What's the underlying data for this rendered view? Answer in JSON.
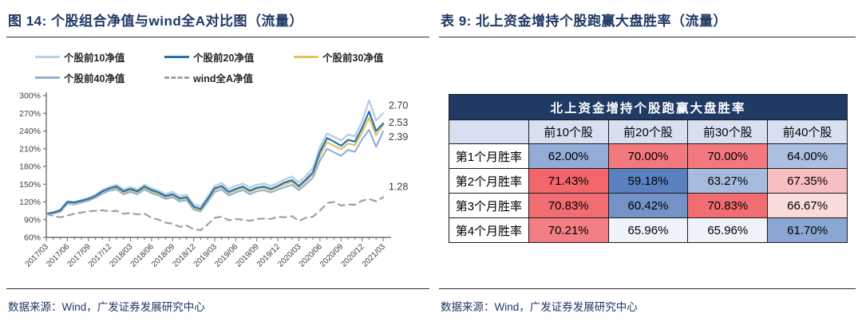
{
  "left_panel": {
    "title": "图 14:  个股组合净值与wind全A对比图（流量）",
    "source": "数据来源：Wind，广发证券发展研究中心"
  },
  "right_panel": {
    "title": "表 9:  北上资金增持个股跑赢大盘胜率（流量）",
    "source": "数据来源：Wind，广发证券发展研究中心"
  },
  "chart_data": {
    "type": "line",
    "title": "个股组合净值与wind全A对比图（流量）",
    "x_resolution": "monthly",
    "x_tick_labels": [
      "2017/03",
      "2017/06",
      "2017/09",
      "2017/12",
      "2018/03",
      "2018/06",
      "2018/09",
      "2018/12",
      "2019/03",
      "2019/06",
      "2019/09",
      "2019/12",
      "2020/03",
      "2020/06",
      "2020/09",
      "2020/12",
      "2021/03"
    ],
    "y_tick_labels": [
      "60%",
      "90%",
      "120%",
      "150%",
      "180%",
      "210%",
      "240%",
      "270%",
      "300%"
    ],
    "ylim_percent": [
      60,
      300
    ],
    "grid": false,
    "legend_position": "top",
    "axis_color": "#6e6e6e",
    "tick_label_color": "#404040",
    "annotation_color": "#3a3a3a",
    "series": [
      {
        "name": "个股前10净值",
        "color": "#B9CDE6",
        "dash": false,
        "end_label": "2.70",
        "values": [
          1.0,
          1.02,
          1.07,
          1.21,
          1.2,
          1.23,
          1.27,
          1.32,
          1.4,
          1.45,
          1.49,
          1.41,
          1.45,
          1.41,
          1.49,
          1.43,
          1.39,
          1.33,
          1.37,
          1.3,
          1.32,
          1.16,
          1.12,
          1.29,
          1.47,
          1.52,
          1.42,
          1.47,
          1.51,
          1.44,
          1.49,
          1.51,
          1.47,
          1.52,
          1.58,
          1.63,
          1.53,
          1.64,
          1.77,
          2.13,
          2.36,
          2.3,
          2.24,
          2.34,
          2.31,
          2.56,
          2.92,
          2.58,
          2.7
        ]
      },
      {
        "name": "个股前20净值",
        "color": "#2572B2",
        "dash": false,
        "end_label": "2.53",
        "values": [
          1.0,
          1.02,
          1.06,
          1.2,
          1.19,
          1.22,
          1.25,
          1.3,
          1.38,
          1.43,
          1.46,
          1.38,
          1.42,
          1.38,
          1.46,
          1.4,
          1.36,
          1.3,
          1.33,
          1.26,
          1.28,
          1.12,
          1.08,
          1.25,
          1.43,
          1.47,
          1.37,
          1.42,
          1.46,
          1.39,
          1.44,
          1.46,
          1.42,
          1.47,
          1.53,
          1.57,
          1.47,
          1.58,
          1.7,
          2.05,
          2.28,
          2.22,
          2.15,
          2.25,
          2.22,
          2.45,
          2.73,
          2.4,
          2.53
        ]
      },
      {
        "name": "个股前30净值",
        "color": "#E2C45F",
        "dash": false,
        "end_label": "",
        "values": [
          1.0,
          1.01,
          1.05,
          1.19,
          1.18,
          1.21,
          1.24,
          1.29,
          1.37,
          1.42,
          1.44,
          1.36,
          1.4,
          1.36,
          1.44,
          1.38,
          1.34,
          1.28,
          1.31,
          1.24,
          1.26,
          1.1,
          1.06,
          1.23,
          1.41,
          1.45,
          1.35,
          1.4,
          1.44,
          1.37,
          1.42,
          1.44,
          1.4,
          1.45,
          1.5,
          1.54,
          1.44,
          1.55,
          1.67,
          1.99,
          2.21,
          2.15,
          2.09,
          2.19,
          2.16,
          2.38,
          2.62,
          2.33,
          2.5
        ]
      },
      {
        "name": "个股前40净值",
        "color": "#92B1D8",
        "dash": false,
        "end_label": "2.39",
        "values": [
          1.0,
          1.0,
          1.03,
          1.17,
          1.16,
          1.19,
          1.22,
          1.27,
          1.34,
          1.39,
          1.41,
          1.33,
          1.37,
          1.33,
          1.41,
          1.35,
          1.31,
          1.25,
          1.28,
          1.21,
          1.23,
          1.07,
          1.04,
          1.2,
          1.37,
          1.41,
          1.31,
          1.36,
          1.4,
          1.33,
          1.38,
          1.4,
          1.36,
          1.41,
          1.45,
          1.49,
          1.4,
          1.5,
          1.61,
          1.9,
          2.1,
          2.04,
          1.98,
          2.08,
          2.05,
          2.26,
          2.42,
          2.13,
          2.39
        ]
      },
      {
        "name": "wind全A净值",
        "color": "#A0A0A0",
        "dash": true,
        "end_label": "1.28",
        "values": [
          1.0,
          0.96,
          0.94,
          0.97,
          1.0,
          1.02,
          1.04,
          1.05,
          1.06,
          1.04,
          1.05,
          1.0,
          1.01,
          0.99,
          1.0,
          0.93,
          0.9,
          0.85,
          0.83,
          0.78,
          0.8,
          0.74,
          0.72,
          0.82,
          0.93,
          0.95,
          0.89,
          0.91,
          0.9,
          0.88,
          0.91,
          0.92,
          0.91,
          0.95,
          0.94,
          0.96,
          0.88,
          0.93,
          0.95,
          1.05,
          1.18,
          1.2,
          1.14,
          1.16,
          1.15,
          1.22,
          1.25,
          1.21,
          1.28
        ]
      }
    ],
    "annotations": [
      {
        "text": "2.70",
        "series_index": 0,
        "dy": -6
      },
      {
        "text": "2.53",
        "series_index": 1,
        "dy": 3
      },
      {
        "text": "2.39",
        "series_index": 3,
        "dy": 11
      },
      {
        "text": "1.28",
        "series_index": 4,
        "dy": -9
      }
    ]
  },
  "table": {
    "merged_header": "北上资金增持个股跑赢大盘胜率",
    "header_bg": "#203A66",
    "header_text_color": "#FFFFFF",
    "subheader_bg": "#D7DFF0",
    "columns": [
      "",
      "前10个股",
      "前20个股",
      "前30个股",
      "前40个股"
    ],
    "rows": [
      {
        "label": "第1个月胜率",
        "values": [
          "62.00%",
          "70.00%",
          "70.00%",
          "64.00%"
        ],
        "colors": [
          "#92ACD7",
          "#F4797E",
          "#F4797E",
          "#ABBFE1"
        ]
      },
      {
        "label": "第2个月胜率",
        "values": [
          "71.43%",
          "59.18%",
          "63.27%",
          "67.35%"
        ],
        "colors": [
          "#F2666C",
          "#5B80BF",
          "#A6BBDD",
          "#F7BFC2"
        ]
      },
      {
        "label": "第3个月胜率",
        "values": [
          "70.83%",
          "60.42%",
          "70.83%",
          "66.67%"
        ],
        "colors": [
          "#F26D72",
          "#7292C8",
          "#F26D72",
          "#FADBDD"
        ]
      },
      {
        "label": "第4个月胜率",
        "values": [
          "70.21%",
          "65.96%",
          "65.96%",
          "61.70%"
        ],
        "colors": [
          "#F37F84",
          "#EEF2F9",
          "#EEF2F9",
          "#8AA6D3"
        ]
      }
    ]
  }
}
